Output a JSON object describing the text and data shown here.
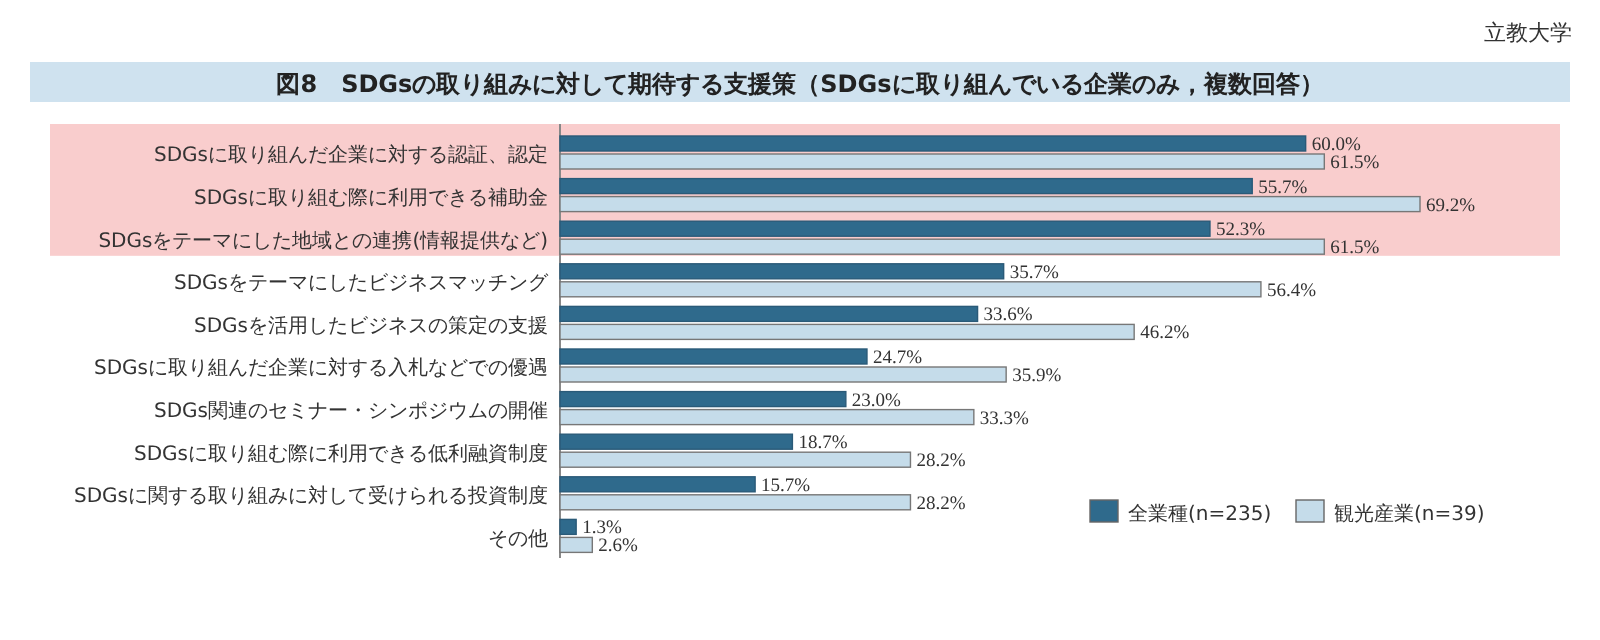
{
  "chart_data": {
    "type": "bar",
    "orientation": "horizontal",
    "title": "図8　SDGsの取り組みに対して期待する支援策（SDGsに取り組んでいる企業のみ，複数回答）",
    "annotations": [
      "立教大学"
    ],
    "categories": [
      "SDGsに取り組んだ企業に対する認証、認定",
      "SDGsに取り組む際に利用できる補助金",
      "SDGsをテーマにした地域との連携(情報提供など)",
      "SDGsをテーマにしたビジネスマッチング",
      "SDGsを活用したビジネスの策定の支援",
      "SDGsに取り組んだ企業に対する入札などでの優遇",
      "SDGs関連のセミナー・シンポジウムの開催",
      "SDGsに取り組む際に利用できる低利融資制度",
      "SDGsに関する取り組みに対して受けられる投資制度",
      "その他"
    ],
    "series": [
      {
        "name": "全業種(n=235)",
        "color": "#2f6a8c",
        "values": [
          60.0,
          55.7,
          52.3,
          35.7,
          33.6,
          24.7,
          23.0,
          18.7,
          15.7,
          1.3
        ],
        "value_labels": [
          "60.0%",
          "55.7%",
          "52.3%",
          "35.7%",
          "33.6%",
          "24.7%",
          "23.0%",
          "18.7%",
          "15.7%",
          "1.3%"
        ]
      },
      {
        "name": "観光産業(n=39)",
        "color": "#c5dcea",
        "values": [
          61.5,
          69.2,
          61.5,
          56.4,
          46.2,
          35.9,
          33.3,
          28.2,
          28.2,
          2.6
        ],
        "value_labels": [
          "61.5%",
          "69.2%",
          "61.5%",
          "56.4%",
          "46.2%",
          "35.9%",
          "33.3%",
          "28.2%",
          "28.2%",
          "2.6%"
        ]
      }
    ],
    "legend": "bottom right"
  }
}
